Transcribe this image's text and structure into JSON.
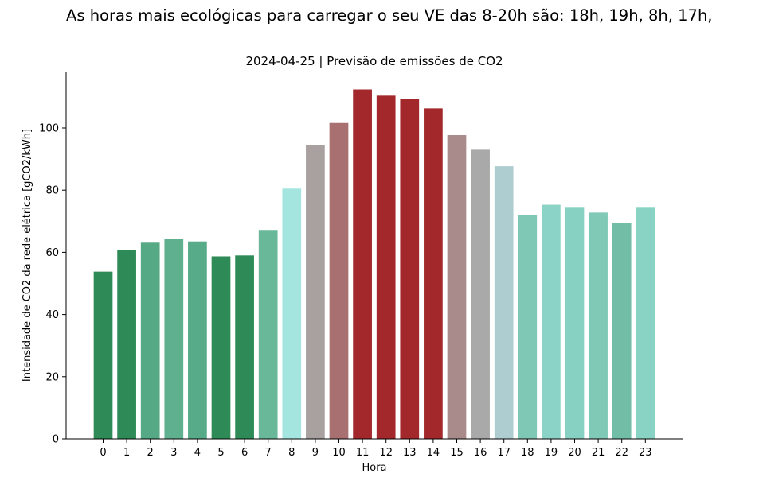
{
  "headline": "As horas mais ecológicas para carregar o seu VE das 8-20h são: 18h, 19h, 8h, 17h,",
  "chart_data": {
    "type": "bar",
    "title": "2024-04-25 | Previsão de emissões de CO2",
    "xlabel": "Hora",
    "ylabel": "Intensidade de CO2 da rede elétrica [gCO2/kWh]",
    "categories": [
      "0",
      "1",
      "2",
      "3",
      "4",
      "5",
      "6",
      "7",
      "8",
      "9",
      "10",
      "11",
      "12",
      "13",
      "14",
      "15",
      "16",
      "17",
      "18",
      "19",
      "20",
      "21",
      "22",
      "23"
    ],
    "values": [
      53.8,
      60.7,
      63.1,
      64.3,
      63.5,
      58.7,
      59.0,
      67.2,
      80.5,
      94.6,
      101.6,
      112.4,
      110.4,
      109.4,
      106.3,
      97.7,
      93.0,
      87.7,
      72.0,
      75.3,
      74.6,
      72.8,
      69.5,
      74.6
    ],
    "colors": [
      "#2e8b57",
      "#2e8b57",
      "#55aa85",
      "#5fb08f",
      "#57ab88",
      "#2e8b57",
      "#2e8b57",
      "#69b899",
      "#a5e5e0",
      "#a9a0a0",
      "#a87070",
      "#a2282b",
      "#a2282b",
      "#a2282b",
      "#a2282b",
      "#aa8b8b",
      "#a9a9a9",
      "#aecdd0",
      "#7fc8b5",
      "#8bd3c6",
      "#87d1c2",
      "#7fc9b6",
      "#72bda6",
      "#88d3c3"
    ],
    "yticks": [
      0,
      20,
      40,
      60,
      80,
      100
    ],
    "ylim": [
      0,
      118
    ],
    "grid": false,
    "legend": "none"
  }
}
